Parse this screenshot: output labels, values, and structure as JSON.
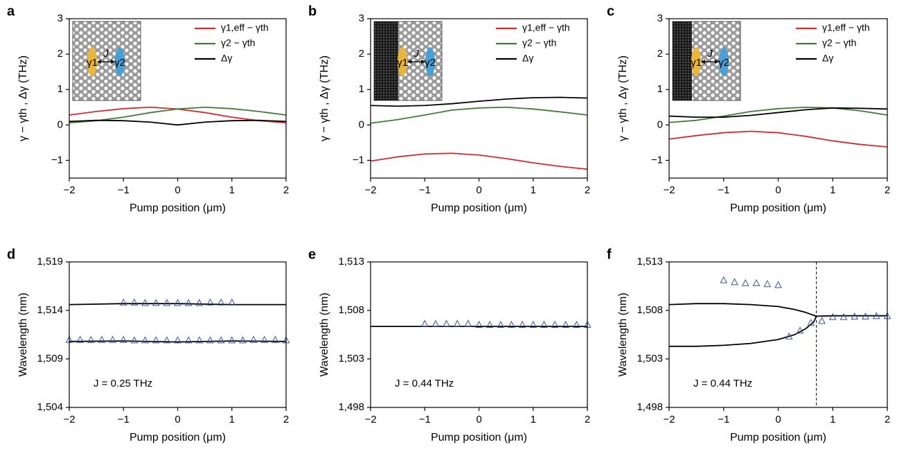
{
  "chart_data": [
    {
      "type": "line",
      "panel": "a",
      "x_label": "Pump position (μm)",
      "y_label": "γ − γth , Δγ (THz)",
      "xlim": [
        -2,
        2
      ],
      "xticks": [
        {
          "value": -2,
          "label": "−2"
        },
        {
          "value": -1,
          "label": "−1"
        },
        0,
        1,
        2
      ],
      "ylim": [
        -1.5,
        3
      ],
      "yticks": [
        {
          "value": -1,
          "label": "−1"
        },
        0,
        1,
        2,
        3
      ],
      "legend": "upper right",
      "inset": {
        "coupling": "J",
        "left": "γ1",
        "right": "γ2"
      },
      "x": [
        -2,
        -1.5,
        -1,
        -0.5,
        0,
        0.5,
        1,
        1.5,
        2
      ],
      "series": [
        {
          "name": "γ1,eff − γth",
          "color": "#d42a2a",
          "values": [
            0.28,
            0.38,
            0.46,
            0.5,
            0.45,
            0.35,
            0.22,
            0.12,
            0.06
          ]
        },
        {
          "name": "γ2 − γth",
          "color": "#3e7d33",
          "values": [
            0.06,
            0.12,
            0.22,
            0.35,
            0.45,
            0.5,
            0.46,
            0.38,
            0.28
          ]
        },
        {
          "name": "Δγ",
          "color": "#000000",
          "values": [
            0.1,
            0.13,
            0.12,
            0.08,
            0.0,
            0.08,
            0.12,
            0.13,
            0.1
          ]
        }
      ]
    },
    {
      "type": "line",
      "panel": "b",
      "x_label": "Pump position (μm)",
      "y_label": "γ − γth , Δγ (THz)",
      "xlim": [
        -2,
        2
      ],
      "xticks": [
        {
          "value": -2,
          "label": "−2"
        },
        {
          "value": -1,
          "label": "−1"
        },
        0,
        1,
        2
      ],
      "ylim": [
        -1.5,
        3
      ],
      "yticks": [
        {
          "value": -1,
          "label": "−1"
        },
        0,
        1,
        2,
        3
      ],
      "legend": "upper right",
      "inset": {
        "coupling": "J",
        "left": "γ1",
        "right": "γ2"
      },
      "x": [
        -2,
        -1.5,
        -1,
        -0.5,
        0,
        0.5,
        1,
        1.5,
        2
      ],
      "series": [
        {
          "name": "γ1,eff − γth",
          "color": "#d42a2a",
          "values": [
            -1.02,
            -0.9,
            -0.82,
            -0.8,
            -0.85,
            -0.95,
            -1.07,
            -1.17,
            -1.25
          ]
        },
        {
          "name": "γ2 − γth",
          "color": "#3e7d33",
          "values": [
            0.05,
            0.15,
            0.28,
            0.42,
            0.48,
            0.5,
            0.45,
            0.37,
            0.28
          ]
        },
        {
          "name": "Δγ",
          "color": "#000000",
          "values": [
            0.55,
            0.53,
            0.55,
            0.6,
            0.67,
            0.73,
            0.77,
            0.78,
            0.76
          ]
        }
      ]
    },
    {
      "type": "line",
      "panel": "c",
      "x_label": "Pump position (μm)",
      "y_label": "γ − γth , Δγ (THz)",
      "xlim": [
        -2,
        2
      ],
      "xticks": [
        {
          "value": -2,
          "label": "−2"
        },
        {
          "value": -1,
          "label": "−1"
        },
        0,
        1,
        2
      ],
      "ylim": [
        -1.5,
        3
      ],
      "yticks": [
        {
          "value": -1,
          "label": "−1"
        },
        0,
        1,
        2,
        3
      ],
      "legend": "upper right",
      "inset": {
        "coupling": "J",
        "left": "γ1",
        "right": "γ2"
      },
      "x": [
        -2,
        -1.5,
        -1,
        -0.5,
        0,
        0.5,
        1,
        1.5,
        2
      ],
      "series": [
        {
          "name": "γ1,eff − γth",
          "color": "#d42a2a",
          "values": [
            -0.4,
            -0.3,
            -0.22,
            -0.18,
            -0.22,
            -0.32,
            -0.45,
            -0.55,
            -0.62
          ]
        },
        {
          "name": "γ2 − γth",
          "color": "#3e7d33",
          "values": [
            0.07,
            0.13,
            0.25,
            0.38,
            0.46,
            0.5,
            0.48,
            0.4,
            0.28
          ]
        },
        {
          "name": "Δγ",
          "color": "#000000",
          "values": [
            0.25,
            0.22,
            0.22,
            0.27,
            0.35,
            0.43,
            0.48,
            0.47,
            0.45
          ]
        }
      ]
    },
    {
      "type": "line",
      "panel": "d",
      "x_label": "Pump position (μm)",
      "y_label": "Wavelength (nm)",
      "annotation": "J = 0.25 THz",
      "xlim": [
        -2,
        2
      ],
      "xticks": [
        {
          "value": -2,
          "label": "−2"
        },
        {
          "value": -1,
          "label": "−1"
        },
        0,
        1,
        2
      ],
      "ylim": [
        1504,
        1519
      ],
      "yticks": [
        {
          "value": 1504,
          "label": "1,504"
        },
        {
          "value": 1509,
          "label": "1,509"
        },
        {
          "value": 1514,
          "label": "1,514"
        },
        {
          "value": 1519,
          "label": "1,519"
        }
      ],
      "series": [
        {
          "mode": "lines",
          "color": "#000000",
          "x": [
            -2,
            -1,
            0,
            1,
            2
          ],
          "values": [
            1514.6,
            1514.7,
            1514.7,
            1514.6,
            1514.6
          ]
        },
        {
          "mode": "lines",
          "color": "#000000",
          "x": [
            -2,
            -1,
            0,
            1,
            2
          ],
          "values": [
            1510.8,
            1510.85,
            1510.75,
            1510.85,
            1510.8
          ]
        },
        {
          "mode": "markers",
          "color": "#3c4e9a",
          "x": [
            -1,
            -0.8,
            -0.6,
            -0.4,
            -0.2,
            0,
            0.2,
            0.4,
            0.6,
            0.8,
            1
          ],
          "values": [
            1514.8,
            1514.8,
            1514.75,
            1514.75,
            1514.75,
            1514.75,
            1514.75,
            1514.75,
            1514.8,
            1514.8,
            1514.8
          ]
        },
        {
          "mode": "markers",
          "color": "#3c4e9a",
          "x": [
            -2,
            -1.8,
            -1.6,
            -1.4,
            -1.2,
            -1,
            -0.8,
            -0.6,
            -0.4,
            -0.2,
            0,
            0.2,
            0.4,
            0.6,
            0.8,
            1,
            1.2,
            1.4,
            1.6,
            1.8,
            2
          ],
          "values": [
            1510.95,
            1510.95,
            1510.95,
            1510.95,
            1510.95,
            1510.95,
            1510.9,
            1510.9,
            1510.9,
            1510.9,
            1510.9,
            1510.9,
            1510.9,
            1510.9,
            1510.9,
            1510.9,
            1510.9,
            1510.95,
            1510.95,
            1510.95,
            1510.9
          ]
        }
      ]
    },
    {
      "type": "line",
      "panel": "e",
      "x_label": "Pump position (μm)",
      "y_label": "Wavelength (nm)",
      "annotation": "J = 0.44 THz",
      "xlim": [
        -2,
        2
      ],
      "xticks": [
        {
          "value": -2,
          "label": "−2"
        },
        {
          "value": -1,
          "label": "−1"
        },
        0,
        1,
        2
      ],
      "ylim": [
        1498,
        1513
      ],
      "yticks": [
        {
          "value": 1498,
          "label": "1,498"
        },
        {
          "value": 1503,
          "label": "1,503"
        },
        {
          "value": 1508,
          "label": "1,508"
        },
        {
          "value": 1513,
          "label": "1,513"
        }
      ],
      "series": [
        {
          "mode": "lines",
          "color": "#000000",
          "x": [
            -2,
            0,
            2
          ],
          "values": [
            1506.35,
            1506.35,
            1506.35
          ]
        },
        {
          "mode": "markers",
          "color": "#3c4e9a",
          "x": [
            -1,
            -0.8,
            -0.6,
            -0.4,
            -0.2,
            0,
            0.2,
            0.4,
            0.6,
            0.8,
            1,
            1.2,
            1.4,
            1.6,
            1.8,
            2
          ],
          "values": [
            1506.6,
            1506.6,
            1506.6,
            1506.6,
            1506.6,
            1506.5,
            1506.5,
            1506.5,
            1506.5,
            1506.5,
            1506.5,
            1506.5,
            1506.5,
            1506.5,
            1506.5,
            1506.5
          ]
        }
      ]
    },
    {
      "type": "line",
      "panel": "f",
      "x_label": "Pump position (μm)",
      "y_label": "Wavelength (nm)",
      "annotation": "J = 0.44 THz",
      "vline": 0.7,
      "xlim": [
        -2,
        2
      ],
      "xticks": [
        {
          "value": -2,
          "label": "−2"
        },
        {
          "value": -1,
          "label": "−1"
        },
        0,
        1,
        2
      ],
      "ylim": [
        1498,
        1513
      ],
      "yticks": [
        {
          "value": 1498,
          "label": "1,498"
        },
        {
          "value": 1503,
          "label": "1,503"
        },
        {
          "value": 1508,
          "label": "1,508"
        },
        {
          "value": 1513,
          "label": "1,513"
        }
      ],
      "series": [
        {
          "mode": "lines",
          "color": "#000000",
          "x": [
            -2,
            -1.5,
            -1,
            -0.5,
            0,
            0.3,
            0.5,
            0.65,
            0.7
          ],
          "values": [
            1508.6,
            1508.7,
            1508.7,
            1508.6,
            1508.4,
            1508.1,
            1507.8,
            1507.5,
            1507.4
          ]
        },
        {
          "mode": "lines",
          "color": "#000000",
          "x": [
            -2,
            -1.5,
            -1,
            -0.5,
            0,
            0.3,
            0.5,
            0.65,
            0.7
          ],
          "values": [
            1504.3,
            1504.3,
            1504.4,
            1504.6,
            1505.0,
            1505.5,
            1506.1,
            1506.8,
            1507.4
          ]
        },
        {
          "mode": "lines",
          "color": "#000000",
          "x": [
            0.7,
            1,
            1.5,
            2
          ],
          "values": [
            1507.4,
            1507.45,
            1507.45,
            1507.45
          ]
        },
        {
          "mode": "markers",
          "color": "#3c4e9a",
          "x": [
            -1,
            -0.8,
            -0.6,
            -0.4,
            -0.2,
            0
          ],
          "values": [
            1511.1,
            1510.9,
            1510.8,
            1510.8,
            1510.7,
            1510.6
          ]
        },
        {
          "mode": "markers",
          "color": "#3c4e9a",
          "x": [
            0.2,
            0.4,
            0.6,
            0.8,
            1,
            1.2,
            1.4,
            1.6,
            1.8,
            2
          ],
          "values": [
            1505.3,
            1505.9,
            1506.7,
            1506.9,
            1507.3,
            1507.3,
            1507.35,
            1507.35,
            1507.4,
            1507.4
          ]
        }
      ]
    }
  ]
}
